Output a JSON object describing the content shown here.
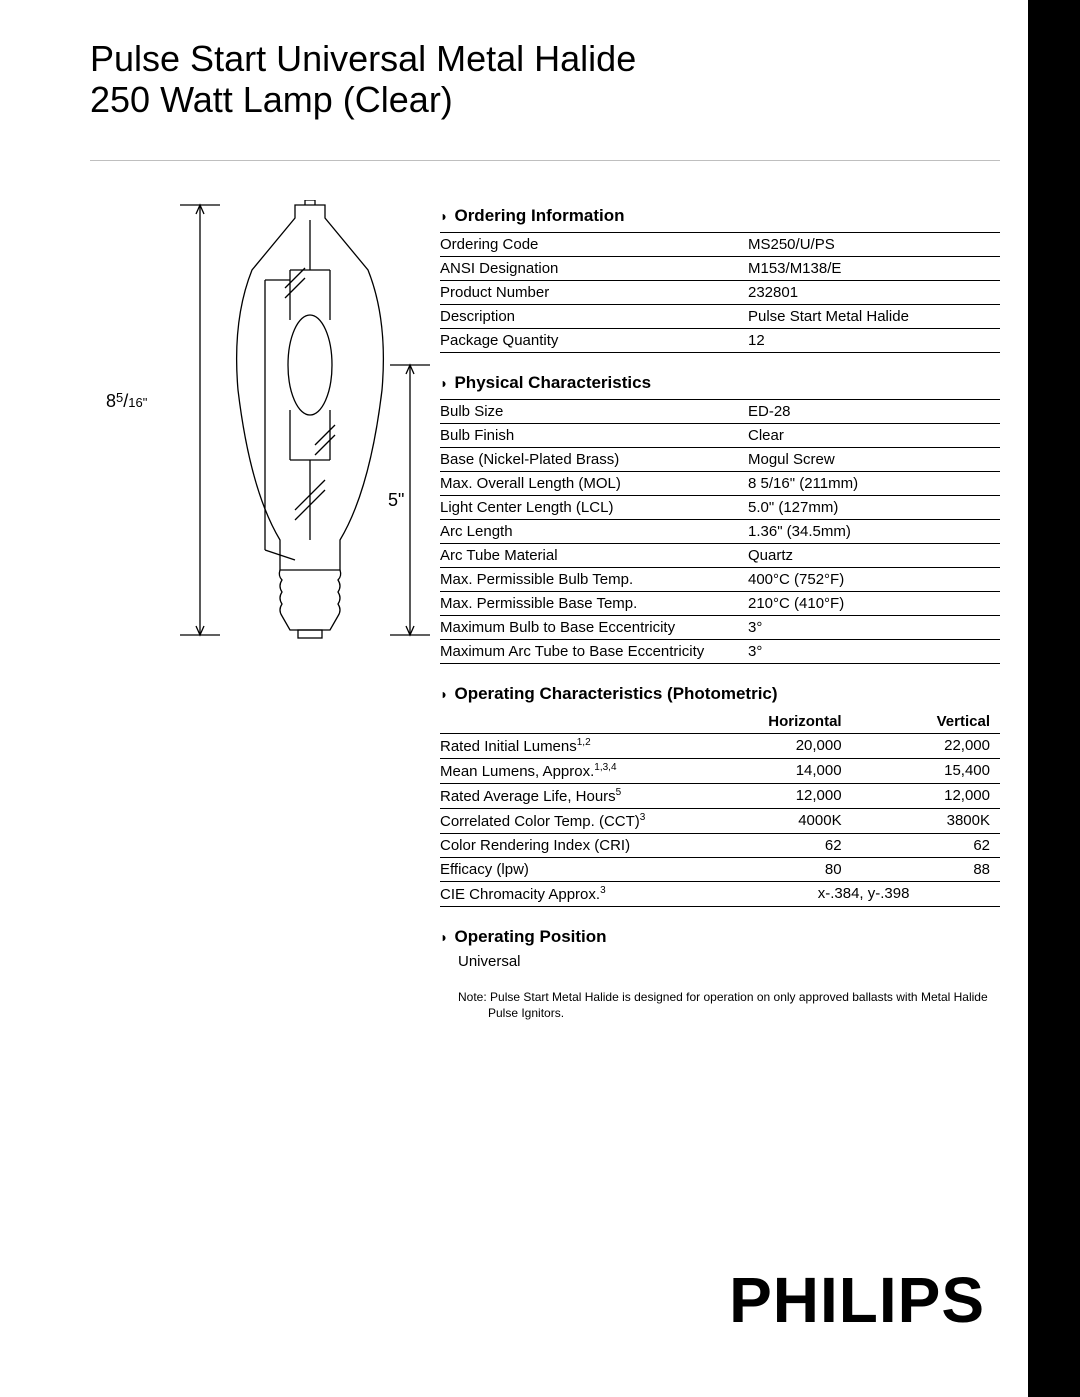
{
  "title_line1": "Pulse Start Universal Metal Halide",
  "title_line2": "250 Watt Lamp (Clear)",
  "diagram": {
    "overall_length_label": "8",
    "overall_length_frac_num": "5",
    "overall_length_frac_sep": "/",
    "overall_length_frac_den": "16\"",
    "lcl_label": "5\"",
    "stroke": "#000000",
    "stroke_width": 1.3
  },
  "sections": {
    "ordering": {
      "heading": "Ordering Information",
      "rows": [
        {
          "label": "Ordering Code",
          "value": "MS250/U/PS"
        },
        {
          "label": "ANSI Designation",
          "value": "M153/M138/E"
        },
        {
          "label": "Product Number",
          "value": "232801"
        },
        {
          "label": "Description",
          "value": "Pulse Start Metal Halide"
        },
        {
          "label": "Package Quantity",
          "value": "12"
        }
      ]
    },
    "physical": {
      "heading": "Physical Characteristics",
      "rows": [
        {
          "label": "Bulb Size",
          "value": "ED-28"
        },
        {
          "label": "Bulb Finish",
          "value": "Clear"
        },
        {
          "label": "Base (Nickel-Plated Brass)",
          "value": "Mogul Screw"
        },
        {
          "label": "Max. Overall Length (MOL)",
          "value": "8 5/16\" (211mm)"
        },
        {
          "label": "Light Center Length (LCL)",
          "value": "5.0\" (127mm)"
        },
        {
          "label": "Arc Length",
          "value": "1.36\" (34.5mm)"
        },
        {
          "label": "Arc Tube Material",
          "value": "Quartz"
        },
        {
          "label": "Max. Permissible Bulb Temp.",
          "value": "400°C (752°F)"
        },
        {
          "label": "Max. Permissible Base Temp.",
          "value": "210°C (410°F)"
        },
        {
          "label": "Maximum Bulb to Base Eccentricity",
          "value": "3°"
        },
        {
          "label": "Maximum Arc Tube to Base Eccentricity",
          "value": "3°"
        }
      ]
    },
    "operating": {
      "heading": "Operating Characteristics (Photometric)",
      "col_h": "Horizontal",
      "col_v": "Vertical",
      "rows": [
        {
          "label": "Rated Initial Lumens",
          "sup": "1,2",
          "h": "20,000",
          "v": "22,000"
        },
        {
          "label": "Mean Lumens, Approx.",
          "sup": "1,3,4",
          "h": "14,000",
          "v": "15,400"
        },
        {
          "label": "Rated Average Life, Hours",
          "sup": "5",
          "h": "12,000",
          "v": "12,000"
        },
        {
          "label": "Correlated Color Temp. (CCT)",
          "sup": "3",
          "h": "4000K",
          "v": "3800K"
        },
        {
          "label": "Color Rendering Index (CRI)",
          "sup": "",
          "h": "62",
          "v": "62"
        },
        {
          "label": "Efficacy (lpw)",
          "sup": "",
          "h": "80",
          "v": "88"
        }
      ],
      "cie_label": "CIE Chromacity Approx.",
      "cie_sup": "3",
      "cie_value": "x-.384, y-.398"
    },
    "position": {
      "heading": "Operating Position",
      "value": "Universal"
    }
  },
  "note_prefix": "Note:",
  "note_body": "Pulse Start Metal Halide is designed for operation on only approved ballasts with Metal Halide Pulse Ignitors.",
  "brand": "PHILIPS",
  "colors": {
    "background": "#ffffff",
    "text": "#000000",
    "divider": "#bfbfbf",
    "sidebar": "#000000"
  }
}
